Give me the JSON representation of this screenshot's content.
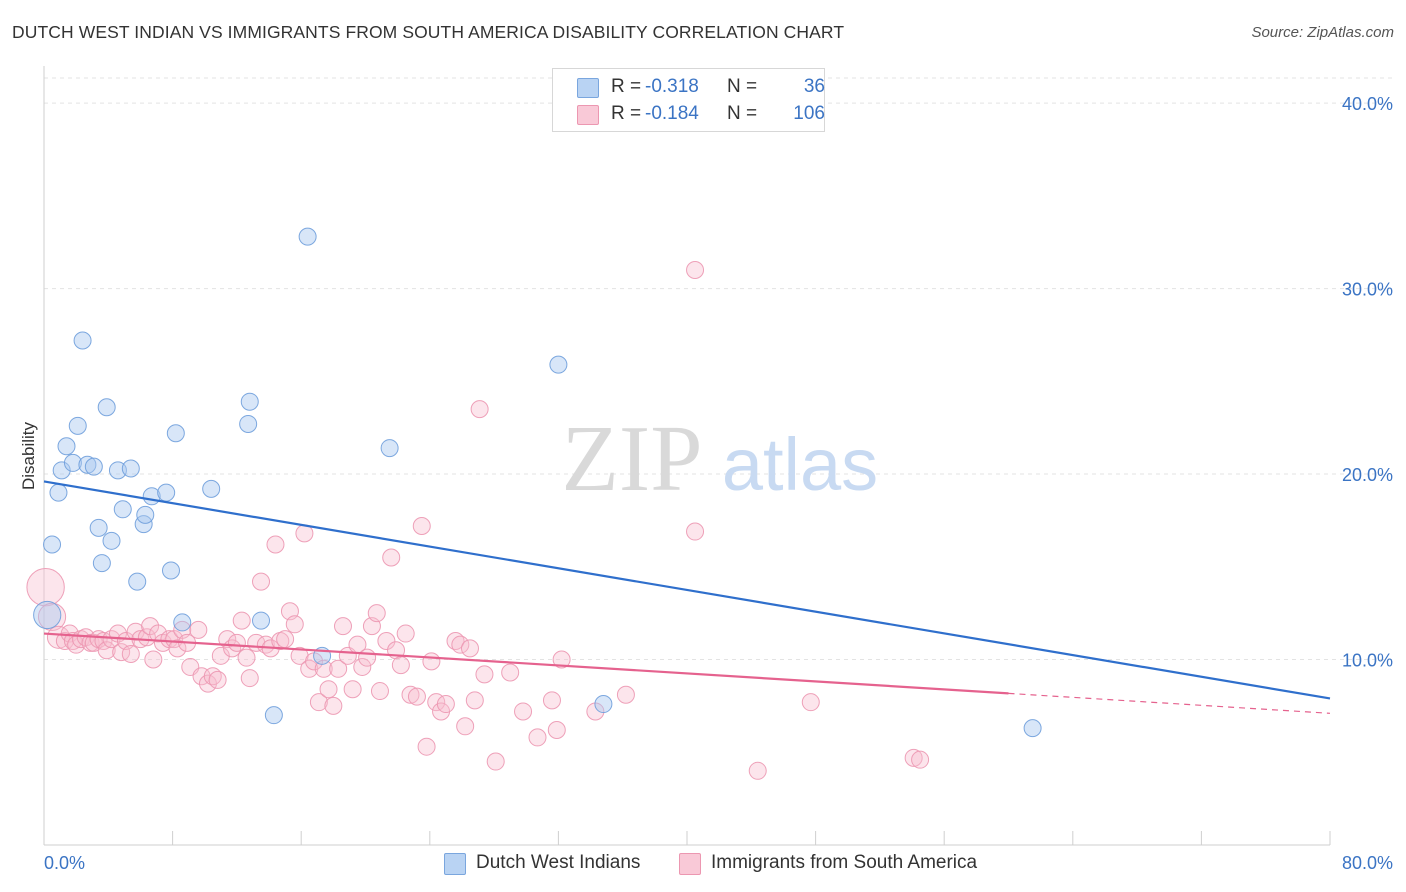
{
  "header": {
    "title": "DUTCH WEST INDIAN VS IMMIGRANTS FROM SOUTH AMERICA DISABILITY CORRELATION CHART",
    "source": "Source: ZipAtlas.com"
  },
  "watermark": {
    "zip": "ZIP",
    "atlas": "atlas"
  },
  "legend": {
    "rows": [
      {
        "r_label": "R =",
        "r_value": "-0.318",
        "n_label": "N =",
        "n_value": "36"
      },
      {
        "r_label": "R =",
        "r_value": "-0.184",
        "n_label": "N =",
        "n_value": "106"
      }
    ]
  },
  "bottom_legend": {
    "series1": "Dutch West Indians",
    "series2": "Immigrants from South America"
  },
  "chart_data": {
    "type": "scatter",
    "ylabel": "Disability",
    "xlim": [
      0,
      80
    ],
    "ylim": [
      0,
      42
    ],
    "x_ticks": [
      "0.0%",
      "80.0%"
    ],
    "y_ticks": [
      {
        "value": 10,
        "label": "10.0%"
      },
      {
        "value": 20,
        "label": "20.0%"
      },
      {
        "value": 30,
        "label": "30.0%"
      },
      {
        "value": 40,
        "label": "40.0%"
      }
    ],
    "grid": true,
    "legend_position": "top-center",
    "series": [
      {
        "name": "Dutch West Indians",
        "color": "#6f9fdc",
        "fill": "#a9c8f0",
        "trend": {
          "x": [
            0,
            80
          ],
          "y": [
            19.6,
            7.9
          ],
          "solid_until": 80
        },
        "points": [
          [
            0.2,
            12.4,
            1.6
          ],
          [
            0.5,
            16.2,
            1
          ],
          [
            0.9,
            19.0,
            1
          ],
          [
            1.1,
            20.2,
            1
          ],
          [
            1.4,
            21.5,
            1
          ],
          [
            1.8,
            20.6,
            1
          ],
          [
            2.1,
            22.6,
            1
          ],
          [
            2.4,
            27.2,
            1
          ],
          [
            2.7,
            20.5,
            1
          ],
          [
            3.1,
            20.4,
            1
          ],
          [
            3.4,
            17.1,
            1
          ],
          [
            3.6,
            15.2,
            1
          ],
          [
            3.9,
            23.6,
            1
          ],
          [
            4.2,
            16.4,
            1
          ],
          [
            4.6,
            20.2,
            1
          ],
          [
            4.9,
            18.1,
            1
          ],
          [
            5.4,
            20.3,
            1
          ],
          [
            5.8,
            14.2,
            1
          ],
          [
            6.2,
            17.3,
            1
          ],
          [
            6.3,
            17.8,
            1
          ],
          [
            6.7,
            18.8,
            1
          ],
          [
            7.6,
            19.0,
            1
          ],
          [
            7.9,
            14.8,
            1
          ],
          [
            8.2,
            22.2,
            1
          ],
          [
            8.6,
            12.0,
            1
          ],
          [
            10.4,
            19.2,
            1
          ],
          [
            12.7,
            22.7,
            1
          ],
          [
            12.8,
            23.9,
            1
          ],
          [
            13.5,
            12.1,
            1
          ],
          [
            14.3,
            7.0,
            1
          ],
          [
            16.4,
            32.8,
            1
          ],
          [
            17.3,
            10.2,
            1
          ],
          [
            21.5,
            21.4,
            1
          ],
          [
            32.0,
            25.9,
            1
          ],
          [
            34.8,
            7.6,
            1
          ],
          [
            61.5,
            6.3,
            1
          ]
        ]
      },
      {
        "name": "Immigrants from South America",
        "color": "#ec97b1",
        "fill": "#f7bfd0",
        "trend": {
          "x": [
            0,
            80
          ],
          "y": [
            11.4,
            7.1
          ],
          "solid_until": 60
        },
        "points": [
          [
            0.1,
            13.9,
            2.2
          ],
          [
            0.5,
            12.3,
            1.6
          ],
          [
            0.9,
            11.2,
            1.3
          ],
          [
            1.3,
            11.0,
            1
          ],
          [
            1.6,
            11.4,
            1
          ],
          [
            1.8,
            11.0,
            1
          ],
          [
            2.0,
            10.8,
            1
          ],
          [
            2.3,
            11.1,
            1
          ],
          [
            2.6,
            11.2,
            1
          ],
          [
            2.9,
            10.9,
            1
          ],
          [
            3.1,
            10.9,
            1
          ],
          [
            3.4,
            11.1,
            1
          ],
          [
            3.7,
            11.0,
            1
          ],
          [
            3.9,
            10.5,
            1
          ],
          [
            4.2,
            11.1,
            1
          ],
          [
            4.6,
            11.4,
            1
          ],
          [
            4.8,
            10.4,
            1
          ],
          [
            5.1,
            11.0,
            1
          ],
          [
            5.4,
            10.3,
            1
          ],
          [
            5.7,
            11.5,
            1
          ],
          [
            6.0,
            11.1,
            1
          ],
          [
            6.4,
            11.2,
            1
          ],
          [
            6.6,
            11.8,
            1
          ],
          [
            6.8,
            10.0,
            1
          ],
          [
            7.1,
            11.4,
            1
          ],
          [
            7.4,
            10.9,
            1
          ],
          [
            7.8,
            11.1,
            1
          ],
          [
            8.1,
            11.1,
            1
          ],
          [
            8.3,
            10.6,
            1
          ],
          [
            8.6,
            11.6,
            1
          ],
          [
            8.9,
            10.9,
            1
          ],
          [
            9.1,
            9.6,
            1
          ],
          [
            9.6,
            11.6,
            1
          ],
          [
            9.8,
            9.1,
            1
          ],
          [
            10.2,
            8.7,
            1
          ],
          [
            10.5,
            9.1,
            1
          ],
          [
            10.8,
            8.9,
            1
          ],
          [
            11.0,
            10.2,
            1
          ],
          [
            11.4,
            11.1,
            1
          ],
          [
            11.7,
            10.6,
            1
          ],
          [
            12.0,
            10.9,
            1
          ],
          [
            12.3,
            12.1,
            1
          ],
          [
            12.6,
            10.1,
            1
          ],
          [
            12.8,
            9.0,
            1
          ],
          [
            13.2,
            10.9,
            1
          ],
          [
            13.5,
            14.2,
            1
          ],
          [
            13.8,
            10.8,
            1
          ],
          [
            14.1,
            10.6,
            1
          ],
          [
            14.4,
            16.2,
            1
          ],
          [
            14.7,
            11.0,
            1
          ],
          [
            15.0,
            11.1,
            1
          ],
          [
            15.3,
            12.6,
            1
          ],
          [
            15.6,
            11.9,
            1
          ],
          [
            15.9,
            10.2,
            1
          ],
          [
            16.2,
            16.8,
            1
          ],
          [
            16.5,
            9.5,
            1
          ],
          [
            16.8,
            9.9,
            1
          ],
          [
            17.1,
            7.7,
            1
          ],
          [
            17.4,
            9.5,
            1
          ],
          [
            17.7,
            8.4,
            1
          ],
          [
            18.0,
            7.5,
            1
          ],
          [
            18.3,
            9.5,
            1
          ],
          [
            18.6,
            11.8,
            1
          ],
          [
            18.9,
            10.2,
            1
          ],
          [
            19.2,
            8.4,
            1
          ],
          [
            19.5,
            10.8,
            1
          ],
          [
            19.8,
            9.6,
            1
          ],
          [
            20.1,
            10.1,
            1
          ],
          [
            20.4,
            11.8,
            1
          ],
          [
            20.7,
            12.5,
            1
          ],
          [
            20.9,
            8.3,
            1
          ],
          [
            21.3,
            11.0,
            1
          ],
          [
            21.6,
            15.5,
            1
          ],
          [
            21.9,
            10.5,
            1
          ],
          [
            22.2,
            9.7,
            1
          ],
          [
            22.5,
            11.4,
            1
          ],
          [
            22.8,
            8.1,
            1
          ],
          [
            23.2,
            8.0,
            1
          ],
          [
            23.5,
            17.2,
            1
          ],
          [
            23.8,
            5.3,
            1
          ],
          [
            24.1,
            9.9,
            1
          ],
          [
            24.4,
            7.7,
            1
          ],
          [
            24.7,
            7.2,
            1
          ],
          [
            25.0,
            7.6,
            1
          ],
          [
            25.6,
            11.0,
            1
          ],
          [
            25.9,
            10.8,
            1
          ],
          [
            26.2,
            6.4,
            1
          ],
          [
            26.5,
            10.6,
            1
          ],
          [
            26.8,
            7.8,
            1
          ],
          [
            27.1,
            23.5,
            1
          ],
          [
            27.4,
            9.2,
            1
          ],
          [
            28.1,
            4.5,
            1
          ],
          [
            29.0,
            9.3,
            1
          ],
          [
            29.8,
            7.2,
            1
          ],
          [
            30.7,
            5.8,
            1
          ],
          [
            31.6,
            7.8,
            1
          ],
          [
            31.9,
            6.2,
            1
          ],
          [
            32.2,
            10.0,
            1
          ],
          [
            34.3,
            7.2,
            1
          ],
          [
            36.2,
            8.1,
            1
          ],
          [
            40.5,
            31.0,
            1
          ],
          [
            40.5,
            16.9,
            1
          ],
          [
            44.4,
            4.0,
            1
          ],
          [
            47.7,
            7.7,
            1
          ],
          [
            54.1,
            4.7,
            1
          ],
          [
            54.5,
            4.6,
            1
          ]
        ]
      }
    ]
  }
}
